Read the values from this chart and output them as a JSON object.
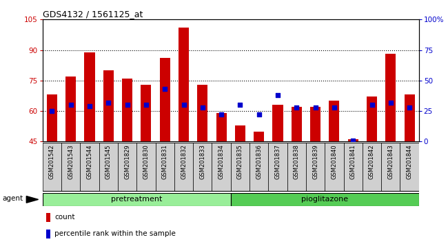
{
  "title": "GDS4132 / 1561125_at",
  "samples": [
    "GSM201542",
    "GSM201543",
    "GSM201544",
    "GSM201545",
    "GSM201829",
    "GSM201830",
    "GSM201831",
    "GSM201832",
    "GSM201833",
    "GSM201834",
    "GSM201835",
    "GSM201836",
    "GSM201837",
    "GSM201838",
    "GSM201839",
    "GSM201840",
    "GSM201841",
    "GSM201842",
    "GSM201843",
    "GSM201844"
  ],
  "count_values": [
    68,
    77,
    89,
    80,
    76,
    73,
    86,
    101,
    73,
    59,
    53,
    50,
    63,
    62,
    62,
    65,
    46,
    67,
    88,
    68
  ],
  "percentile_values": [
    25,
    30,
    29,
    32,
    30,
    30,
    43,
    30,
    28,
    22,
    30,
    22,
    38,
    28,
    28,
    28,
    1,
    30,
    32,
    28
  ],
  "pretreatment_count": 10,
  "pioglitazone_count": 10,
  "ylim_left": [
    45,
    105
  ],
  "ylim_right": [
    0,
    100
  ],
  "yticks_left": [
    45,
    60,
    75,
    90,
    105
  ],
  "yticks_right": [
    0,
    25,
    50,
    75,
    100
  ],
  "bar_color": "#cc0000",
  "dot_color": "#0000cc",
  "pretreatment_color": "#99ee99",
  "pioglitazone_color": "#55cc55",
  "label_bg_color": "#d0d0d0",
  "grid_lines": [
    60,
    75,
    90
  ],
  "background_color": "#ffffff"
}
